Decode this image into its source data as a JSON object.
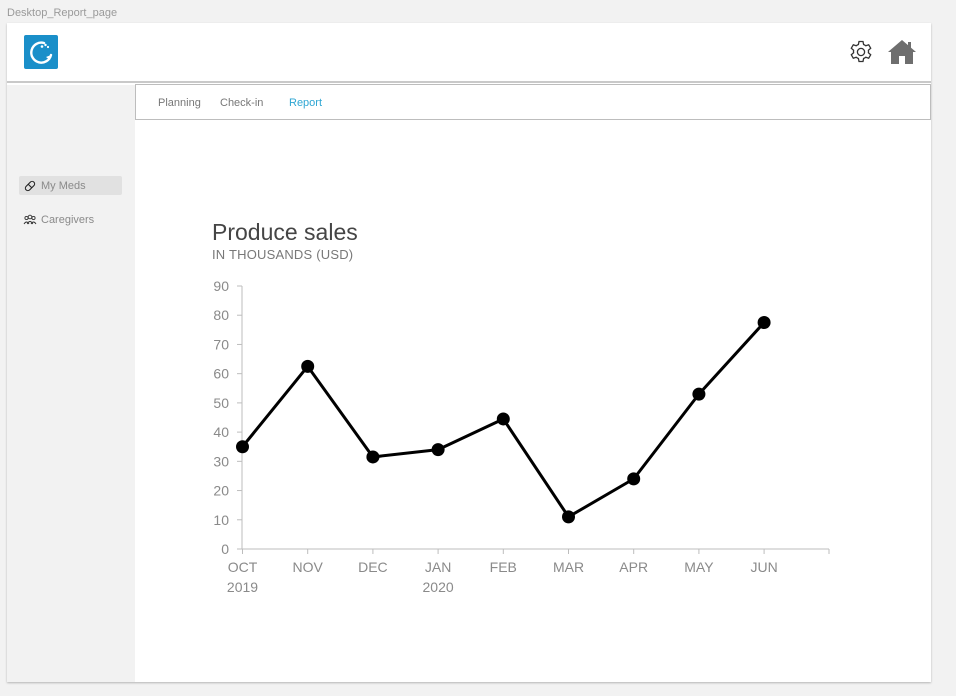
{
  "frame": {
    "label": "Desktop_Report_page"
  },
  "header": {
    "logo": "app-logo",
    "icons": [
      "settings-gear-icon",
      "home-icon"
    ]
  },
  "colors": {
    "accent": "#2ea6d3",
    "logo_bg": "#1a8fc9",
    "line": "#000000"
  },
  "sidebar": {
    "items": [
      {
        "label": "My Meds",
        "icon": "pill-icon",
        "active": true
      },
      {
        "label": "Caregivers",
        "icon": "people-icon",
        "active": false
      }
    ]
  },
  "tabs": [
    {
      "label": "Planning",
      "active": false
    },
    {
      "label": "Check-in",
      "active": false
    },
    {
      "label": "Report",
      "active": true
    }
  ],
  "chart_data": {
    "type": "line",
    "title": "Produce sales",
    "subtitle": "IN THOUSANDS (USD)",
    "categories": [
      "OCT",
      "NOV",
      "DEC",
      "JAN",
      "FEB",
      "MAR",
      "APR",
      "MAY",
      "JUN"
    ],
    "year_labels": [
      "2019",
      "",
      "",
      "2020",
      "",
      "",
      "",
      "",
      ""
    ],
    "values": [
      35,
      62.5,
      31.5,
      34,
      44.5,
      11,
      24,
      53,
      77.5
    ],
    "ylim": [
      0,
      90
    ],
    "yticks": [
      0,
      10,
      20,
      30,
      40,
      50,
      60,
      70,
      80,
      90
    ],
    "grid": false,
    "markers": true
  }
}
